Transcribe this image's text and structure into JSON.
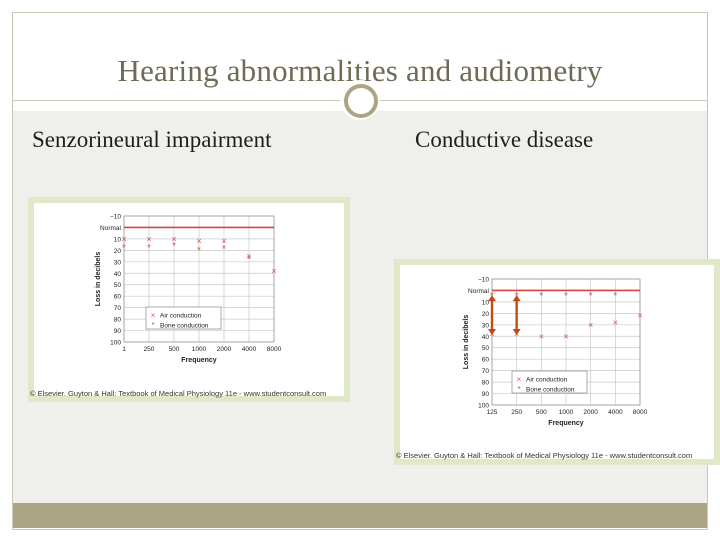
{
  "slide": {
    "title": "Hearing abnormalities and audiometry",
    "left_heading": "Senzorineural impairment",
    "right_heading": "Conductive disease",
    "credit_left": "© Elsevier. Guyton & Hall: Textbook of Medical Physiology 11e - www.studentconsult.com",
    "credit_right": "© Elsevier. Guyton & Hall: Textbook of Medical Physiology 11e - www.studentconsult.com",
    "colors": {
      "frame": "#aba585",
      "title_text": "#6e6a55",
      "normal_line": "#d6453d",
      "marker": "#d9534f",
      "arrow": "#c24a14",
      "chart_border": "#dfe8c7"
    }
  },
  "chart_data": [
    {
      "type": "scatter",
      "xlabel": "Frequency",
      "ylabel": "Loss in decibels",
      "categories": [
        "1",
        "250",
        "500",
        "1000",
        "2000",
        "4000",
        "8000"
      ],
      "ytick_labels": [
        "−10",
        "Normal",
        "10",
        "20",
        "30",
        "40",
        "50",
        "60",
        "70",
        "80",
        "90",
        "100"
      ],
      "ylim": [
        -10,
        100
      ],
      "normal_label": "Normal",
      "normal_level": 0,
      "legend": [
        "Air conduction",
        "Bone conduction"
      ],
      "legend_position": "bottom-left",
      "series": [
        {
          "name": "Air conduction",
          "marker": "x",
          "x": [
            "1",
            "250",
            "500",
            "1000",
            "2000",
            "4000",
            "8000"
          ],
          "values": [
            10,
            10,
            10,
            12,
            12,
            25,
            38
          ]
        },
        {
          "name": "Bone conduction",
          "marker": "*",
          "x": [
            "1",
            "250",
            "500",
            "1000",
            "2000",
            "4000"
          ],
          "values": [
            18,
            18,
            16,
            20,
            19,
            28
          ]
        }
      ]
    },
    {
      "type": "scatter",
      "xlabel": "Frequency",
      "ylabel": "Loss in decibels",
      "categories": [
        "125",
        "250",
        "500",
        "1000",
        "2000",
        "4000",
        "8000"
      ],
      "ytick_labels": [
        "−10",
        "Normal",
        "10",
        "20",
        "30",
        "40",
        "50",
        "60",
        "70",
        "80",
        "90",
        "100"
      ],
      "ylim": [
        -10,
        100
      ],
      "normal_label": "Normal",
      "normal_level": 0,
      "legend": [
        "Air conduction",
        "Bone conduction"
      ],
      "legend_position": "bottom-right",
      "series": [
        {
          "name": "Air conduction",
          "marker": "x",
          "x": [
            "125",
            "250",
            "500",
            "1000",
            "2000",
            "4000",
            "8000"
          ],
          "values": [
            38,
            38,
            40,
            40,
            30,
            28,
            22
          ]
        },
        {
          "name": "Bone conduction",
          "marker": "*",
          "x": [
            "125",
            "250",
            "500",
            "1000",
            "2000",
            "4000"
          ],
          "values": [
            5,
            5,
            5,
            5,
            5,
            5
          ]
        }
      ],
      "annotations": [
        {
          "type": "double-arrow",
          "x": "125",
          "from": 5,
          "to": 38
        },
        {
          "type": "double-arrow",
          "x": "250",
          "from": 5,
          "to": 38
        }
      ]
    }
  ]
}
